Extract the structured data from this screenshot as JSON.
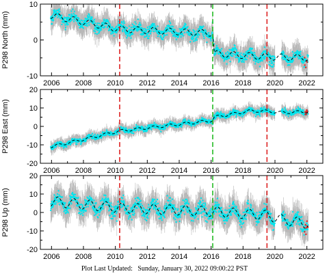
{
  "chart_data": [
    {
      "type": "scatter",
      "ylabel": "P298 North (mm)",
      "xlim": [
        2005.3,
        2023.0
      ],
      "ylim": [
        -10,
        10
      ],
      "yticks": [
        -10,
        0,
        10
      ],
      "xticks": [
        2006,
        2008,
        2010,
        2012,
        2014,
        2016,
        2018,
        2020,
        2022
      ],
      "events": [
        {
          "x": 2010.27,
          "color": "#dd2222"
        },
        {
          "x": 2016.1,
          "color": "#22bb22"
        },
        {
          "x": 2019.5,
          "color": "#dd2222"
        }
      ],
      "trend": [
        [
          2006.0,
          6.8
        ],
        [
          2010.27,
          3.0
        ],
        [
          2016.1,
          1.9
        ],
        [
          2016.2,
          -3.8
        ],
        [
          2019.5,
          -4.7
        ],
        [
          2020.5,
          -4.8
        ],
        [
          2022.0,
          -5.0
        ]
      ],
      "seasonal_amp": 1.0,
      "noise": 1.3,
      "errbar": 2.6,
      "gaps": [
        [
          2020.0,
          2020.4
        ]
      ],
      "red_start": 2021.85
    },
    {
      "type": "scatter",
      "ylabel": "P298 East (mm)",
      "xlim": [
        2005.3,
        2023.0
      ],
      "ylim": [
        -20,
        20
      ],
      "yticks": [
        -20,
        -10,
        0,
        10,
        20
      ],
      "xticks": [
        2006,
        2008,
        2010,
        2012,
        2014,
        2016,
        2018,
        2020,
        2022
      ],
      "events": [
        {
          "x": 2010.27,
          "color": "#dd2222"
        },
        {
          "x": 2016.1,
          "color": "#22bb22"
        },
        {
          "x": 2019.5,
          "color": "#dd2222"
        }
      ],
      "trend": [
        [
          2006.0,
          -11.0
        ],
        [
          2010.27,
          -2.5
        ],
        [
          2016.1,
          3.2
        ],
        [
          2016.2,
          5.0
        ],
        [
          2018.5,
          8.5
        ],
        [
          2019.5,
          8.2
        ],
        [
          2020.5,
          7.5
        ],
        [
          2022.0,
          8.0
        ]
      ],
      "seasonal_amp": 0.8,
      "noise": 1.2,
      "errbar": 2.5,
      "gaps": [
        [
          2020.0,
          2020.4
        ]
      ],
      "red_start": 2021.85
    },
    {
      "type": "scatter",
      "ylabel": "P298 Up (mm)",
      "xlim": [
        2005.3,
        2023.0
      ],
      "ylim": [
        -20,
        20
      ],
      "yticks": [
        -20,
        -10,
        0,
        10,
        20
      ],
      "xticks": [
        2006,
        2008,
        2010,
        2012,
        2014,
        2016,
        2018,
        2020,
        2022
      ],
      "events": [
        {
          "x": 2010.27,
          "color": "#dd2222"
        },
        {
          "x": 2016.1,
          "color": "#22bb22"
        },
        {
          "x": 2019.5,
          "color": "#dd2222"
        }
      ],
      "trend": [
        [
          2006.0,
          6.0
        ],
        [
          2010.27,
          2.5
        ],
        [
          2016.1,
          0.5
        ],
        [
          2019.5,
          -1.5
        ],
        [
          2020.5,
          -4.0
        ],
        [
          2022.0,
          -6.0
        ]
      ],
      "seasonal_amp": 3.0,
      "noise": 3.2,
      "errbar": 6.0,
      "gaps": [
        [
          2020.0,
          2020.4
        ]
      ],
      "red_start": 2021.85
    }
  ],
  "colors": {
    "points": "#00e5ee",
    "errorbars": "#b8b8b8",
    "trend": "#000000",
    "recent_points": "#dd2222"
  },
  "footer": {
    "label": "Plot Last Updated:",
    "value": "Sunday, January 30, 2022 09:00:22 PST"
  }
}
